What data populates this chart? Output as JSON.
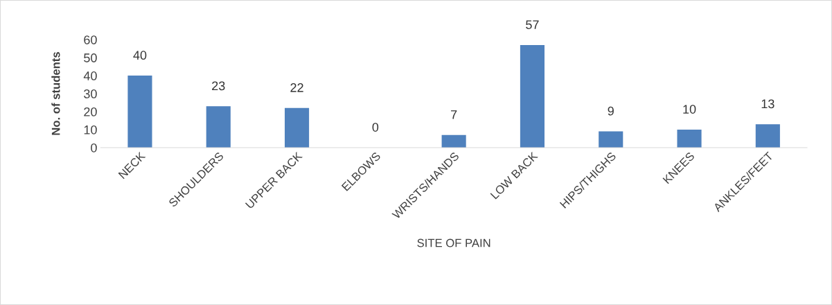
{
  "chart_data": {
    "type": "bar",
    "xlabel": "SITE OF PAIN",
    "ylabel": "No. of students",
    "categories": [
      "NECK",
      "SHOULDERS",
      "UPPER BACK",
      "ELBOWS",
      "WRISTS/HANDS",
      "LOW BACK",
      "HIPS/THIGHS",
      "KNEES",
      "ANKLES/FEET"
    ],
    "values": [
      40,
      23,
      22,
      0,
      7,
      57,
      9,
      10,
      13
    ],
    "color": "#4f81bd",
    "ylim": [
      0,
      60
    ],
    "yticks": [
      0,
      10,
      20,
      30,
      40,
      50,
      60
    ],
    "data_labels": true,
    "grid": false,
    "legend": false
  }
}
